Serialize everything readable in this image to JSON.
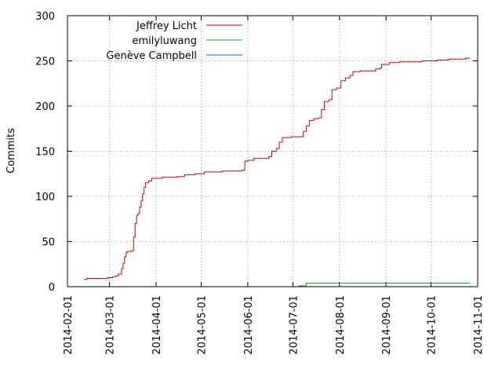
{
  "chart_data": {
    "type": "line",
    "ylabel": "Commits",
    "xlabel": "",
    "ylim": [
      0,
      300
    ],
    "xlim": [
      "2014-02-01",
      "2014-11-01"
    ],
    "yticks": [
      0,
      50,
      100,
      150,
      200,
      250,
      300
    ],
    "xticks": [
      "2014-02-01",
      "2014-03-01",
      "2014-04-01",
      "2014-05-01",
      "2014-06-01",
      "2014-07-01",
      "2014-08-01",
      "2014-09-01",
      "2014-10-01",
      "2014-11-01"
    ],
    "grid": true,
    "legend_position": "top-left",
    "series": [
      {
        "name": "Jeffrey Licht",
        "color": "#cc0000",
        "points": [
          [
            "2014-02-12",
            8
          ],
          [
            "2014-02-14",
            9
          ],
          [
            "2014-02-20",
            9
          ],
          [
            "2014-02-28",
            10
          ],
          [
            "2014-03-03",
            11
          ],
          [
            "2014-03-05",
            12
          ],
          [
            "2014-03-07",
            14
          ],
          [
            "2014-03-09",
            20
          ],
          [
            "2014-03-10",
            26
          ],
          [
            "2014-03-11",
            33
          ],
          [
            "2014-03-12",
            38
          ],
          [
            "2014-03-13",
            39
          ],
          [
            "2014-03-16",
            40
          ],
          [
            "2014-03-17",
            55
          ],
          [
            "2014-03-18",
            70
          ],
          [
            "2014-03-19",
            79
          ],
          [
            "2014-03-20",
            81
          ],
          [
            "2014-03-21",
            88
          ],
          [
            "2014-03-22",
            95
          ],
          [
            "2014-03-23",
            103
          ],
          [
            "2014-03-24",
            110
          ],
          [
            "2014-03-25",
            115
          ],
          [
            "2014-03-27",
            117
          ],
          [
            "2014-03-29",
            120
          ],
          [
            "2014-04-05",
            121
          ],
          [
            "2014-04-15",
            122
          ],
          [
            "2014-04-20",
            124
          ],
          [
            "2014-04-27",
            125
          ],
          [
            "2014-05-03",
            127
          ],
          [
            "2014-05-15",
            128
          ],
          [
            "2014-05-28",
            129
          ],
          [
            "2014-05-30",
            139
          ],
          [
            "2014-06-01",
            140
          ],
          [
            "2014-06-05",
            142
          ],
          [
            "2014-06-15",
            144
          ],
          [
            "2014-06-17",
            150
          ],
          [
            "2014-06-20",
            153
          ],
          [
            "2014-06-22",
            160
          ],
          [
            "2014-06-24",
            165
          ],
          [
            "2014-06-30",
            166
          ],
          [
            "2014-07-07",
            166
          ],
          [
            "2014-07-08",
            172
          ],
          [
            "2014-07-10",
            178
          ],
          [
            "2014-07-12",
            184
          ],
          [
            "2014-07-15",
            186
          ],
          [
            "2014-07-18",
            187
          ],
          [
            "2014-07-20",
            196
          ],
          [
            "2014-07-22",
            205
          ],
          [
            "2014-07-25",
            207
          ],
          [
            "2014-07-27",
            218
          ],
          [
            "2014-07-30",
            220
          ],
          [
            "2014-08-02",
            228
          ],
          [
            "2014-08-05",
            231
          ],
          [
            "2014-08-08",
            234
          ],
          [
            "2014-08-10",
            238
          ],
          [
            "2014-08-15",
            239
          ],
          [
            "2014-08-25",
            241
          ],
          [
            "2014-08-28",
            242
          ],
          [
            "2014-08-29",
            246
          ],
          [
            "2014-09-03",
            248
          ],
          [
            "2014-09-10",
            249
          ],
          [
            "2014-09-25",
            250
          ],
          [
            "2014-10-05",
            251
          ],
          [
            "2014-10-13",
            252
          ],
          [
            "2014-10-20",
            252
          ],
          [
            "2014-10-24",
            253
          ],
          [
            "2014-10-27",
            253
          ]
        ]
      },
      {
        "name": "emilyluwang",
        "color": "#00aa00",
        "points": [
          [
            "2014-07-01",
            0
          ],
          [
            "2014-07-05",
            1
          ],
          [
            "2014-07-10",
            4
          ],
          [
            "2014-10-27",
            4
          ]
        ]
      },
      {
        "name": "Genève Campbell",
        "color": "#0066cc",
        "points": [
          [
            "2014-10-17",
            0
          ],
          [
            "2014-10-27",
            1
          ]
        ]
      }
    ]
  }
}
